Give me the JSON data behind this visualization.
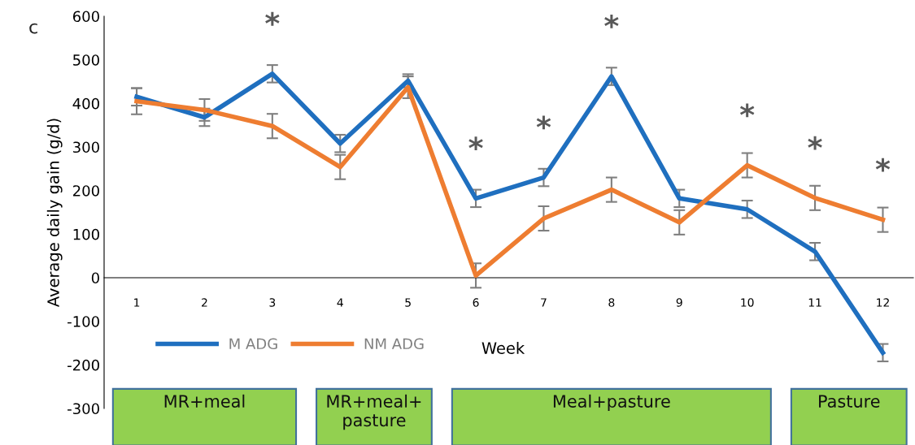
{
  "chart_data": {
    "type": "line",
    "ylabel": "Average daily gain (g/d)",
    "xlabel": "Week",
    "categories": [
      "1",
      "2",
      "3",
      "4",
      "5",
      "6",
      "7",
      "8",
      "9",
      "10",
      "11",
      "12"
    ],
    "series": [
      {
        "name": "M ADG",
        "color": "#1f6fbf",
        "values": [
          415,
          368,
          468,
          308,
          452,
          182,
          230,
          462,
          182,
          157,
          60,
          -172
        ],
        "errors": [
          20,
          20,
          20,
          20,
          15,
          20,
          20,
          20,
          20,
          20,
          20,
          20
        ]
      },
      {
        "name": "NM ADG",
        "color": "#ee7d31",
        "values": [
          405,
          385,
          348,
          254,
          437,
          5,
          136,
          202,
          127,
          258,
          183,
          133
        ],
        "errors": [
          30,
          25,
          28,
          28,
          25,
          28,
          28,
          28,
          28,
          28,
          28,
          28
        ]
      }
    ],
    "ylim": [
      -300,
      600
    ],
    "yticks": [
      -300,
      -200,
      -100,
      0,
      100,
      200,
      300,
      400,
      500,
      600
    ],
    "grid": false,
    "legend": "bottom left",
    "marker": "none",
    "line_style": "solid",
    "annotations": [
      "c",
      {
        "text": "*",
        "x": "3",
        "y": 468
      },
      {
        "text": "*",
        "x": "6",
        "y": 182
      },
      {
        "text": "*",
        "x": "7",
        "y": 230
      },
      {
        "text": "*",
        "x": "8",
        "y": 462
      },
      {
        "text": "*",
        "x": "10",
        "y": 258
      },
      {
        "text": "*",
        "x": "11",
        "y": 183
      },
      {
        "text": "*",
        "x": "12",
        "y": 133
      }
    ],
    "bands": [
      {
        "axis": "x",
        "from": "1",
        "to": "3",
        "label": "MR+meal",
        "color": "#92d050"
      },
      {
        "axis": "x",
        "from": "4",
        "to": "5",
        "label": "MR+meal+ pasture",
        "color": "#92d050"
      },
      {
        "axis": "x",
        "from": "6",
        "to": "10",
        "label": "Meal+pasture",
        "color": "#92d050"
      },
      {
        "axis": "x",
        "from": "11",
        "to": "12",
        "label": "Pasture",
        "color": "#92d050"
      }
    ]
  }
}
